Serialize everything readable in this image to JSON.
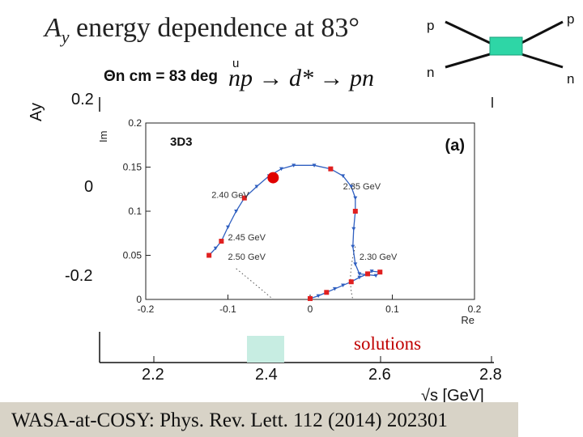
{
  "title": {
    "prefix": "A",
    "sub": "y",
    "text": " energy dependence at 83°"
  },
  "theta_label": "Θn cm = 83 deg",
  "reaction": "np → d* → pn",
  "side_labels": {
    "p_left": "p",
    "n_left": "n",
    "p_right": "p",
    "n_right": "n",
    "u_mark": "u"
  },
  "outer_plot": {
    "ylabel": "Ay",
    "yticks": [
      "0.2",
      "0",
      "-0.2"
    ],
    "xticks": [
      "2.2",
      "2.4",
      "2.6",
      "2.8"
    ],
    "xlabel": "√s [GeV]",
    "legend_text": "solutions"
  },
  "colors": {
    "box": "#2ed6a6",
    "shade": "#c7ede2",
    "curve": "#2f5fc0",
    "marker": "#e02020",
    "footer": "#d8d3c7"
  },
  "footer": "WASA-at-COSY: Phys. Rev. Lett. 112 (2014) 202301",
  "chart_data": {
    "type": "line",
    "title": "",
    "partial_wave": "3D3",
    "panel": "(a)",
    "xlabel": "Re",
    "ylabel": "Im",
    "xlim": [
      -0.2,
      0.2
    ],
    "ylim": [
      0,
      0.2
    ],
    "xticks": [
      "-0.2",
      "-0.1",
      "0",
      "0.1",
      "0.2"
    ],
    "yticks": [
      "0",
      "0.05",
      "0.1",
      "0.15",
      "0.2"
    ],
    "series": [
      {
        "x": [
          0.0,
          0.01,
          0.02,
          0.03,
          0.04,
          0.05,
          0.06,
          0.07,
          0.075,
          0.085,
          0.08,
          0.06,
          0.055,
          0.052,
          0.053,
          0.055,
          0.055,
          0.05,
          0.04,
          0.025,
          0.005,
          -0.02,
          -0.035,
          -0.05,
          -0.065,
          -0.08,
          -0.09,
          -0.1,
          -0.108,
          -0.115,
          -0.123
        ],
        "y": [
          0.001,
          0.004,
          0.008,
          0.012,
          0.016,
          0.02,
          0.025,
          0.029,
          0.032,
          0.031,
          0.027,
          0.029,
          0.04,
          0.06,
          0.08,
          0.1,
          0.115,
          0.128,
          0.14,
          0.148,
          0.152,
          0.152,
          0.148,
          0.14,
          0.128,
          0.115,
          0.1,
          0.082,
          0.066,
          0.058,
          0.05
        ]
      }
    ],
    "markers": [
      {
        "x": 0.0,
        "y": 0.001
      },
      {
        "x": 0.02,
        "y": 0.008
      },
      {
        "x": 0.05,
        "y": 0.02
      },
      {
        "x": 0.07,
        "y": 0.029
      },
      {
        "x": 0.085,
        "y": 0.031
      },
      {
        "x": 0.055,
        "y": 0.1
      },
      {
        "x": 0.025,
        "y": 0.148
      },
      {
        "x": -0.08,
        "y": 0.115
      },
      {
        "x": -0.108,
        "y": 0.066
      },
      {
        "x": -0.123,
        "y": 0.05
      }
    ],
    "highlight": {
      "x": -0.045,
      "y": 0.138
    },
    "energy_labels": [
      {
        "text": "2.35 GeV",
        "x": 0.04,
        "y": 0.125
      },
      {
        "text": "2.40 GeV",
        "x": -0.12,
        "y": 0.115
      },
      {
        "text": "2.45 GeV",
        "x": -0.1,
        "y": 0.067
      },
      {
        "text": "2.50 GeV",
        "x": -0.1,
        "y": 0.045
      },
      {
        "text": "2.30 GeV",
        "x": 0.06,
        "y": 0.045
      }
    ]
  }
}
